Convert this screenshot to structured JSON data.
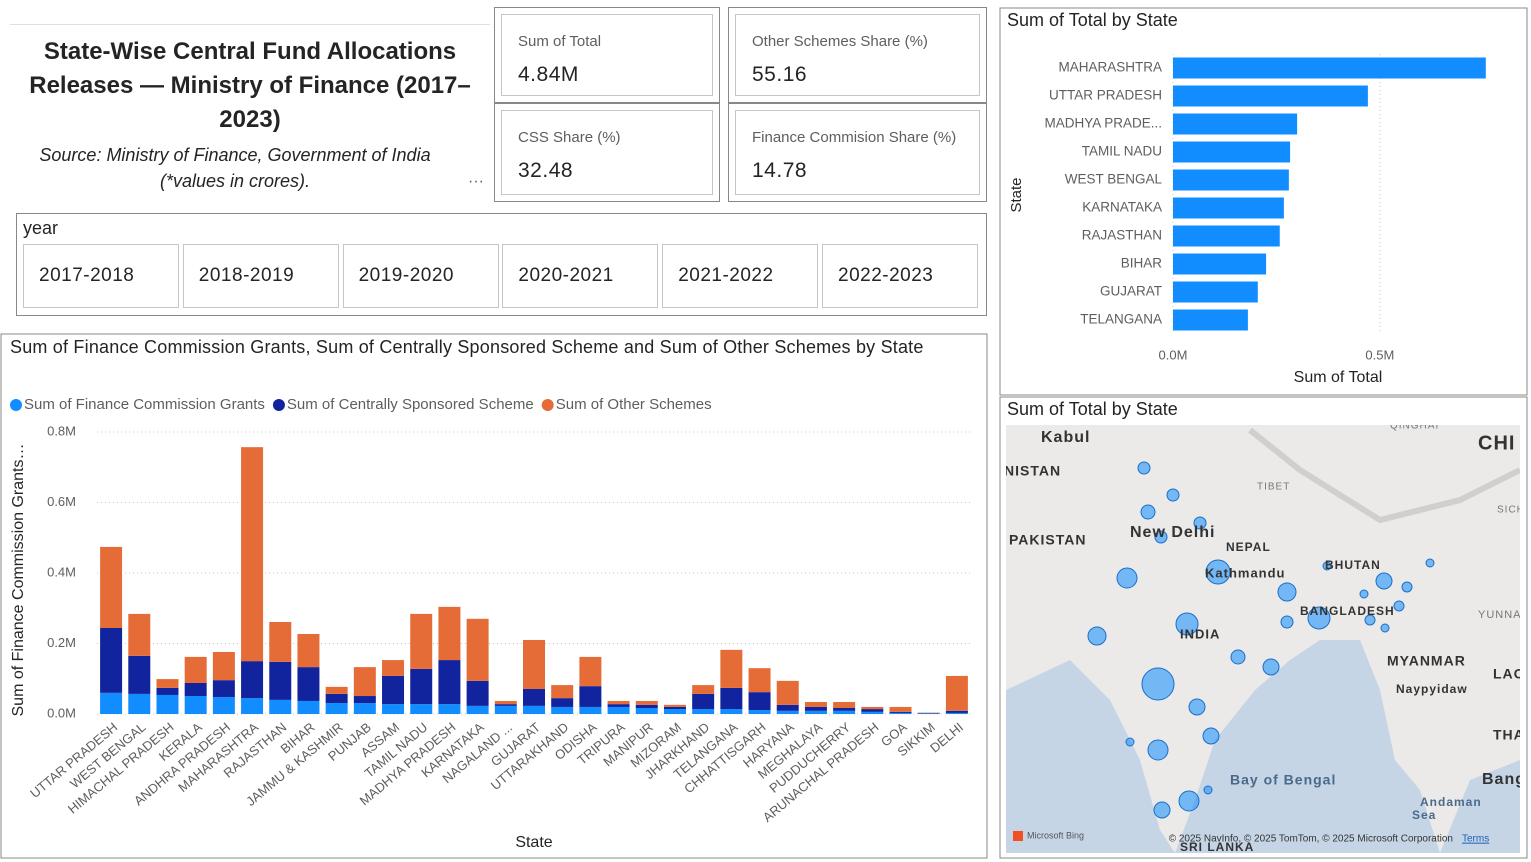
{
  "header": {
    "title": "State-Wise Central Fund Allocations Releases — Ministry of Finance (2017–2023)",
    "source": "Source: Ministry of Finance, Government of India",
    "note": "(*values in crores)."
  },
  "cards": [
    {
      "label": "Sum of Total",
      "value": "4.84M"
    },
    {
      "label": "Other Schemes Share (%)",
      "value": "55.16"
    },
    {
      "label": "CSS Share (%)",
      "value": "32.48"
    },
    {
      "label": "Finance Commision Share (%)",
      "value": "14.78"
    }
  ],
  "slicer": {
    "title": "year",
    "options": [
      "2017-2018",
      "2018-2019",
      "2019-2020",
      "2020-2021",
      "2021-2022",
      "2022-2023"
    ]
  },
  "chart_data": [
    {
      "type": "stacked_bar",
      "title": "Sum of Finance Commission Grants, Sum of Centrally Sponsored Scheme and Sum of Other Schemes by State",
      "xlabel": "State",
      "ylabel": "Sum of Finance Commission Grants…",
      "categories": [
        "UTTAR PRADESH",
        "WEST BENGAL",
        "HIMACHAL PRADESH",
        "KERALA",
        "ANDHRA PRADESH",
        "MAHARASHTRA",
        "RAJASTHAN",
        "BIHAR",
        "JAMMU & KASHMIR",
        "PUNJAB",
        "ASSAM",
        "TAMIL NADU",
        "MADHYA PRADESH",
        "KARNATAKA",
        "NAGALAND ...",
        "GUJARAT",
        "UTTARAKHAND",
        "ODISHA",
        "TRIPURA",
        "MANIPUR",
        "MIZORAM",
        "JHARKHAND",
        "TELANGANA",
        "CHHATTISGARH",
        "HARYANA",
        "MEGHALAYA",
        "PUDDUCHERRY",
        "ARUNACHAL PRADESH",
        "GOA",
        "SIKKIM",
        "DELHI"
      ],
      "series": [
        {
          "name": "Sum of Finance Commission Grants",
          "color": "#118dff",
          "values": [
            60000,
            57000,
            54000,
            51000,
            48000,
            45000,
            40000,
            37000,
            31000,
            31000,
            28000,
            28000,
            28000,
            23000,
            23000,
            23000,
            20000,
            20000,
            20000,
            17000,
            14000,
            14000,
            14000,
            11000,
            9000,
            9000,
            9000,
            6000,
            3000,
            2000,
            3000
          ]
        },
        {
          "name": "Sum of Centrally Sponsored Scheme",
          "color": "#12239e",
          "values": [
            184000,
            108000,
            20000,
            37000,
            48000,
            105000,
            108000,
            96000,
            26000,
            20000,
            80000,
            100000,
            125000,
            71000,
            5000,
            48000,
            25000,
            59000,
            8000,
            9000,
            6000,
            43000,
            60000,
            51000,
            17000,
            11000,
            8000,
            8000,
            3000,
            1000,
            6000
          ]
        },
        {
          "name": "Sum of Other Schemes",
          "color": "#e66c37",
          "values": [
            230000,
            119000,
            25000,
            74000,
            80000,
            607000,
            113000,
            94000,
            20000,
            82000,
            45000,
            156000,
            151000,
            176000,
            9000,
            139000,
            37000,
            83000,
            9000,
            11000,
            6000,
            25000,
            108000,
            68000,
            68000,
            14000,
            17000,
            6000,
            14000,
            1000,
            99000
          ]
        }
      ],
      "ylim": [
        0,
        800000
      ],
      "yticks": [
        {
          "value": 0,
          "label": "0.0M"
        },
        {
          "value": 200000,
          "label": "0.2M"
        },
        {
          "value": 400000,
          "label": "0.4M"
        },
        {
          "value": 600000,
          "label": "0.6M"
        },
        {
          "value": 800000,
          "label": "0.8M"
        }
      ],
      "grid": true
    },
    {
      "type": "hbar",
      "title": "Sum of Total by State",
      "xlabel": "Sum of Total",
      "ylabel": "State",
      "color": "#118dff",
      "categories": [
        "MAHARASHTRA",
        "UTTAR PRADESH",
        "MADHYA PRADE...",
        "TAMIL NADU",
        "WEST BENGAL",
        "KARNATAKA",
        "RAJASTHAN",
        "BIHAR",
        "GUJARAT",
        "TELANGANA"
      ],
      "values": [
        756000,
        471000,
        300000,
        283000,
        280000,
        268000,
        258000,
        225000,
        205000,
        181000
      ],
      "xlim": [
        0,
        800000
      ],
      "xticks": [
        {
          "value": 0,
          "label": "0.0M"
        },
        {
          "value": 500000,
          "label": "0.5M"
        }
      ],
      "grid": true
    }
  ],
  "map": {
    "title": "Sum of Total by State",
    "labels": [
      "QINGHAI",
      "Kabul",
      "CHI",
      "NISTAN",
      "TIBET",
      "SICH",
      "PAKISTAN",
      "New Delhi",
      "NEPAL",
      "Kathmandu",
      "BHUTAN",
      "BANGLADESH",
      "YUNNA",
      "INDIA",
      "MYANMAR",
      "Naypyidaw",
      "LAO",
      "THAILA",
      "Bay of Bengal",
      "Bangkok",
      "Andaman",
      "Sea",
      "SRI LANKA"
    ],
    "brand": "Microsoft Bing",
    "attribution": "© 2025 NavInfo, © 2025 TomTom, © 2025 Microsoft Corporation",
    "terms": "Terms"
  }
}
